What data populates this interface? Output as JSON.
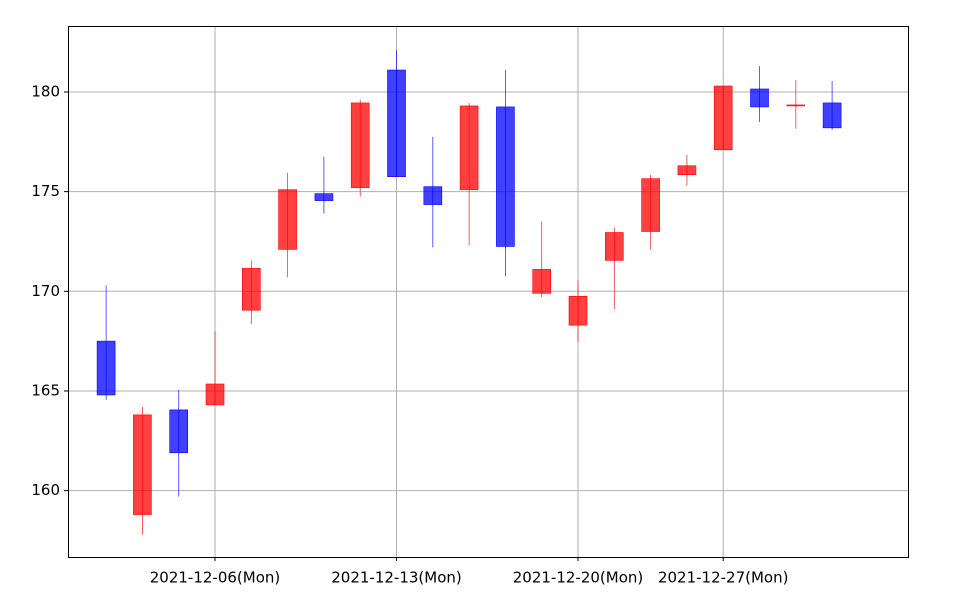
{
  "chart_data": {
    "type": "candlestick",
    "categories": [
      null,
      null,
      null,
      "2021-12-06(Mon)",
      null,
      null,
      null,
      null,
      "2021-12-13(Mon)",
      null,
      null,
      null,
      null,
      "2021-12-20(Mon)",
      null,
      null,
      null,
      "2021-12-27(Mon)",
      null,
      null,
      null
    ],
    "open": [
      167.5,
      158.8,
      164.05,
      164.3,
      169.05,
      172.1,
      174.9,
      175.2,
      181.1,
      175.25,
      175.1,
      179.25,
      169.9,
      168.3,
      171.55,
      173.0,
      175.85,
      177.1,
      180.15,
      179.3,
      179.45
    ],
    "high": [
      170.3,
      164.2,
      165.05,
      168.0,
      171.55,
      175.95,
      176.75,
      179.6,
      182.1,
      177.75,
      179.45,
      181.1,
      173.5,
      170.55,
      173.2,
      175.85,
      176.85,
      180.3,
      181.3,
      180.6,
      180.55
    ],
    "low": [
      164.55,
      157.8,
      159.7,
      164.3,
      168.35,
      170.7,
      173.9,
      174.75,
      175.75,
      172.2,
      172.3,
      170.75,
      169.7,
      167.45,
      169.1,
      172.1,
      175.3,
      177.1,
      178.5,
      178.15,
      178.1
    ],
    "close": [
      164.8,
      163.8,
      161.9,
      165.35,
      171.15,
      175.1,
      174.55,
      179.45,
      175.75,
      174.35,
      179.3,
      172.25,
      171.1,
      169.75,
      172.95,
      175.65,
      176.3,
      180.3,
      179.25,
      179.35,
      178.2
    ],
    "up_color": "#ff0000",
    "down_color": "#0000ff",
    "ylim": [
      156.67,
      183.31
    ],
    "yticks": [
      160,
      165,
      170,
      175,
      180
    ],
    "grid": true
  }
}
